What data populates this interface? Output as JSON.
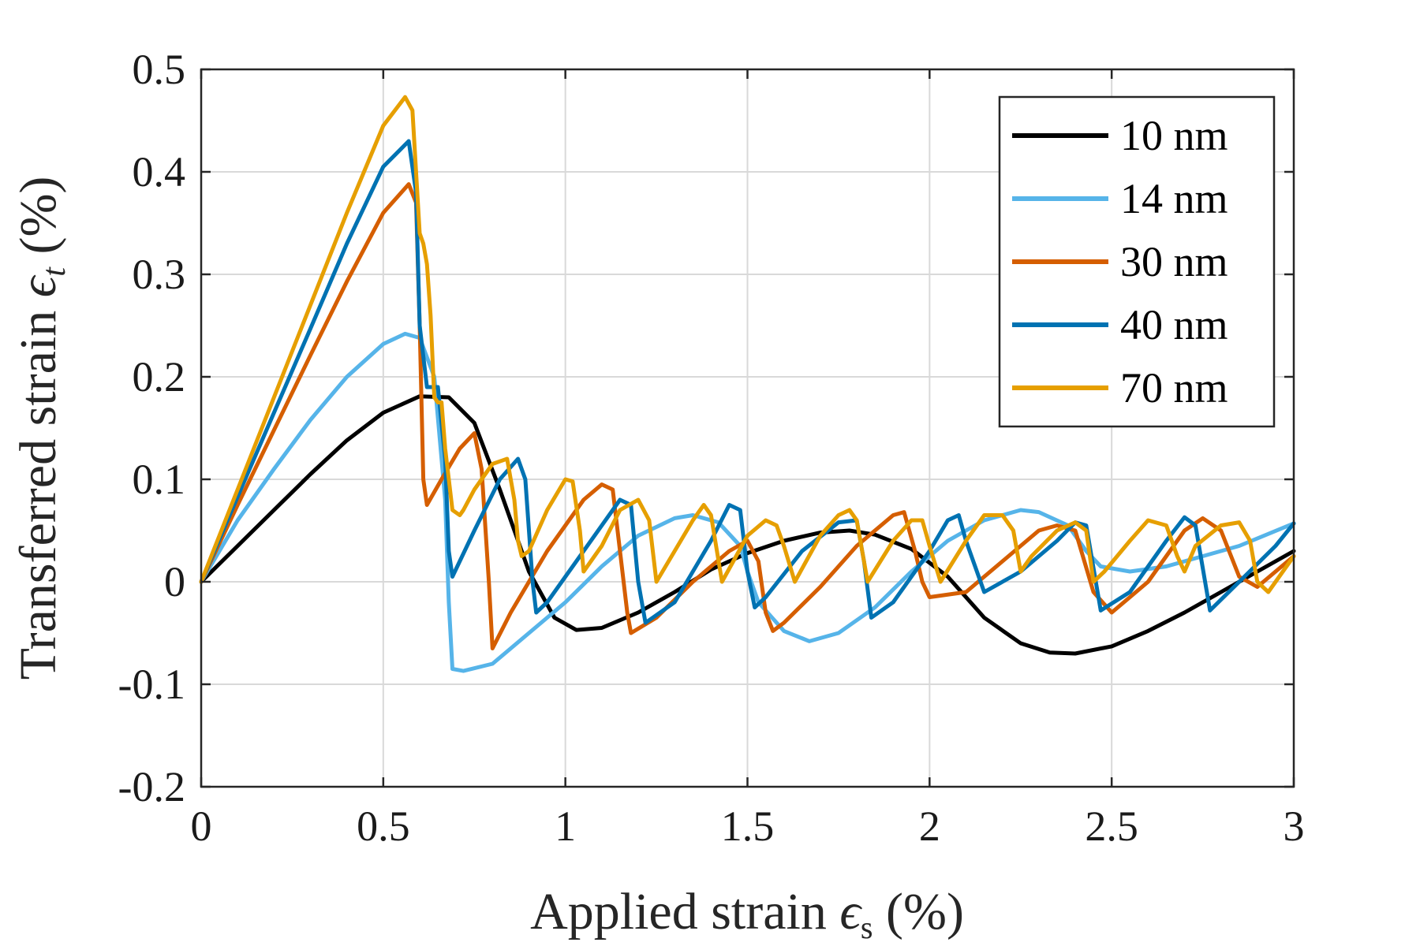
{
  "chart_data": {
    "type": "line",
    "title": "",
    "xlabel_text": "Applied strain ",
    "xlabel_symbol": "ϵ",
    "xlabel_sub": "s",
    "xlabel_unit": " (%)",
    "ylabel_text": "Transferred strain ",
    "ylabel_symbol": "ϵ",
    "ylabel_sub": "t",
    "ylabel_unit": " (%)",
    "xlim": [
      0,
      3
    ],
    "ylim": [
      -0.2,
      0.5
    ],
    "xticks": [
      0,
      0.5,
      1,
      1.5,
      2,
      2.5,
      3
    ],
    "xtick_labels": [
      "0",
      "0.5",
      "1",
      "1.5",
      "2",
      "2.5",
      "3"
    ],
    "yticks": [
      -0.2,
      -0.1,
      0,
      0.1,
      0.2,
      0.3,
      0.4,
      0.5
    ],
    "ytick_labels": [
      "-0.2",
      "-0.1",
      "0",
      "0.1",
      "0.2",
      "0.3",
      "0.4",
      "0.5"
    ],
    "grid": true,
    "legend_position": "top-right",
    "series": [
      {
        "name": "10 nm",
        "color": "#000000",
        "x": [
          0,
          0.1,
          0.2,
          0.3,
          0.4,
          0.5,
          0.6,
          0.68,
          0.75,
          0.82,
          0.9,
          0.97,
          1.03,
          1.1,
          1.2,
          1.3,
          1.4,
          1.5,
          1.6,
          1.7,
          1.78,
          1.85,
          1.95,
          2.05,
          2.15,
          2.25,
          2.33,
          2.4,
          2.5,
          2.6,
          2.7,
          2.8,
          2.9,
          3.0
        ],
        "y": [
          0,
          0.035,
          0.07,
          0.105,
          0.138,
          0.165,
          0.181,
          0.18,
          0.155,
          0.09,
          0.01,
          -0.035,
          -0.047,
          -0.045,
          -0.03,
          -0.01,
          0.012,
          0.028,
          0.04,
          0.048,
          0.05,
          0.046,
          0.032,
          0.005,
          -0.035,
          -0.06,
          -0.069,
          -0.07,
          -0.063,
          -0.048,
          -0.03,
          -0.01,
          0.01,
          0.03
        ]
      },
      {
        "name": "14 nm",
        "color": "#56B4E9",
        "x": [
          0,
          0.1,
          0.2,
          0.3,
          0.4,
          0.5,
          0.56,
          0.6,
          0.64,
          0.67,
          0.68,
          0.69,
          0.72,
          0.8,
          0.9,
          1.0,
          1.1,
          1.2,
          1.3,
          1.35,
          1.42,
          1.48,
          1.5,
          1.53,
          1.6,
          1.67,
          1.75,
          1.85,
          1.95,
          2.05,
          2.15,
          2.25,
          2.3,
          2.38,
          2.43,
          2.47,
          2.55,
          2.65,
          2.75,
          2.85,
          3.0
        ],
        "y": [
          0,
          0.06,
          0.11,
          0.158,
          0.2,
          0.232,
          0.242,
          0.238,
          0.2,
          0.08,
          -0.02,
          -0.085,
          -0.087,
          -0.08,
          -0.05,
          -0.02,
          0.015,
          0.045,
          0.062,
          0.065,
          0.058,
          0.035,
          0.01,
          -0.02,
          -0.048,
          -0.058,
          -0.05,
          -0.025,
          0.01,
          0.04,
          0.06,
          0.07,
          0.068,
          0.055,
          0.03,
          0.015,
          0.01,
          0.015,
          0.025,
          0.035,
          0.057
        ]
      },
      {
        "name": "30 nm",
        "color": "#D55E00",
        "x": [
          0,
          0.1,
          0.2,
          0.3,
          0.4,
          0.5,
          0.57,
          0.59,
          0.6,
          0.61,
          0.62,
          0.66,
          0.71,
          0.75,
          0.77,
          0.79,
          0.8,
          0.85,
          0.95,
          1.05,
          1.1,
          1.13,
          1.15,
          1.17,
          1.18,
          1.25,
          1.35,
          1.45,
          1.5,
          1.53,
          1.55,
          1.57,
          1.6,
          1.7,
          1.8,
          1.9,
          1.93,
          1.96,
          1.98,
          2.0,
          2.1,
          2.2,
          2.3,
          2.35,
          2.4,
          2.45,
          2.5,
          2.6,
          2.7,
          2.75,
          2.8,
          2.85,
          2.9,
          3.0
        ],
        "y": [
          0,
          0.075,
          0.148,
          0.221,
          0.293,
          0.36,
          0.388,
          0.37,
          0.25,
          0.1,
          0.075,
          0.1,
          0.13,
          0.145,
          0.11,
          0.0,
          -0.065,
          -0.03,
          0.03,
          0.08,
          0.095,
          0.09,
          0.03,
          -0.03,
          -0.05,
          -0.035,
          0.0,
          0.03,
          0.04,
          0.02,
          -0.03,
          -0.048,
          -0.04,
          -0.005,
          0.035,
          0.065,
          0.068,
          0.03,
          0.0,
          -0.015,
          -0.01,
          0.02,
          0.05,
          0.055,
          0.05,
          -0.01,
          -0.03,
          0.0,
          0.05,
          0.062,
          0.05,
          0.005,
          -0.005,
          0.025
        ]
      },
      {
        "name": "40 nm",
        "color": "#0072B2",
        "x": [
          0,
          0.1,
          0.2,
          0.3,
          0.4,
          0.5,
          0.57,
          0.59,
          0.6,
          0.62,
          0.65,
          0.67,
          0.68,
          0.69,
          0.75,
          0.82,
          0.87,
          0.89,
          0.91,
          0.92,
          0.95,
          1.05,
          1.15,
          1.18,
          1.2,
          1.22,
          1.3,
          1.4,
          1.45,
          1.48,
          1.5,
          1.52,
          1.55,
          1.65,
          1.75,
          1.8,
          1.82,
          1.84,
          1.9,
          2.0,
          2.05,
          2.08,
          2.1,
          2.15,
          2.25,
          2.35,
          2.4,
          2.43,
          2.47,
          2.55,
          2.65,
          2.7,
          2.73,
          2.77,
          2.85,
          2.95,
          3.0
        ],
        "y": [
          0,
          0.083,
          0.165,
          0.247,
          0.33,
          0.405,
          0.43,
          0.38,
          0.25,
          0.19,
          0.19,
          0.12,
          0.03,
          0.005,
          0.05,
          0.1,
          0.12,
          0.1,
          0.0,
          -0.03,
          -0.02,
          0.03,
          0.08,
          0.075,
          0.0,
          -0.04,
          -0.02,
          0.04,
          0.075,
          0.07,
          0.01,
          -0.025,
          -0.015,
          0.03,
          0.058,
          0.06,
          0.02,
          -0.035,
          -0.02,
          0.03,
          0.06,
          0.065,
          0.04,
          -0.01,
          0.01,
          0.04,
          0.058,
          0.055,
          -0.028,
          -0.01,
          0.04,
          0.063,
          0.055,
          -0.028,
          0.0,
          0.035,
          0.057
        ]
      },
      {
        "name": "70 nm",
        "color": "#E69F00",
        "x": [
          0,
          0.1,
          0.2,
          0.3,
          0.4,
          0.5,
          0.56,
          0.58,
          0.6,
          0.61,
          0.62,
          0.63,
          0.64,
          0.65,
          0.66,
          0.67,
          0.69,
          0.71,
          0.72,
          0.75,
          0.8,
          0.84,
          0.86,
          0.87,
          0.88,
          0.9,
          0.95,
          1.0,
          1.02,
          1.04,
          1.05,
          1.1,
          1.15,
          1.2,
          1.23,
          1.25,
          1.3,
          1.35,
          1.38,
          1.4,
          1.43,
          1.5,
          1.55,
          1.58,
          1.6,
          1.63,
          1.7,
          1.75,
          1.78,
          1.8,
          1.83,
          1.9,
          1.95,
          1.98,
          2.0,
          2.03,
          2.1,
          2.15,
          2.2,
          2.23,
          2.25,
          2.28,
          2.35,
          2.4,
          2.43,
          2.45,
          2.48,
          2.55,
          2.6,
          2.65,
          2.68,
          2.7,
          2.73,
          2.8,
          2.85,
          2.88,
          2.9,
          2.93,
          3.0
        ],
        "y": [
          0,
          0.09,
          0.18,
          0.27,
          0.36,
          0.445,
          0.473,
          0.46,
          0.34,
          0.33,
          0.31,
          0.26,
          0.18,
          0.175,
          0.175,
          0.13,
          0.07,
          0.065,
          0.07,
          0.09,
          0.115,
          0.12,
          0.08,
          0.04,
          0.025,
          0.03,
          0.07,
          0.1,
          0.098,
          0.05,
          0.01,
          0.035,
          0.07,
          0.08,
          0.06,
          0.0,
          0.03,
          0.06,
          0.075,
          0.065,
          0.0,
          0.045,
          0.06,
          0.055,
          0.035,
          0.0,
          0.045,
          0.065,
          0.07,
          0.06,
          0.0,
          0.04,
          0.06,
          0.06,
          0.035,
          0.0,
          0.04,
          0.065,
          0.065,
          0.05,
          0.01,
          0.025,
          0.05,
          0.058,
          0.05,
          0.0,
          0.01,
          0.04,
          0.06,
          0.055,
          0.025,
          0.01,
          0.035,
          0.055,
          0.058,
          0.04,
          0.0,
          -0.01,
          0.025
        ]
      }
    ]
  }
}
